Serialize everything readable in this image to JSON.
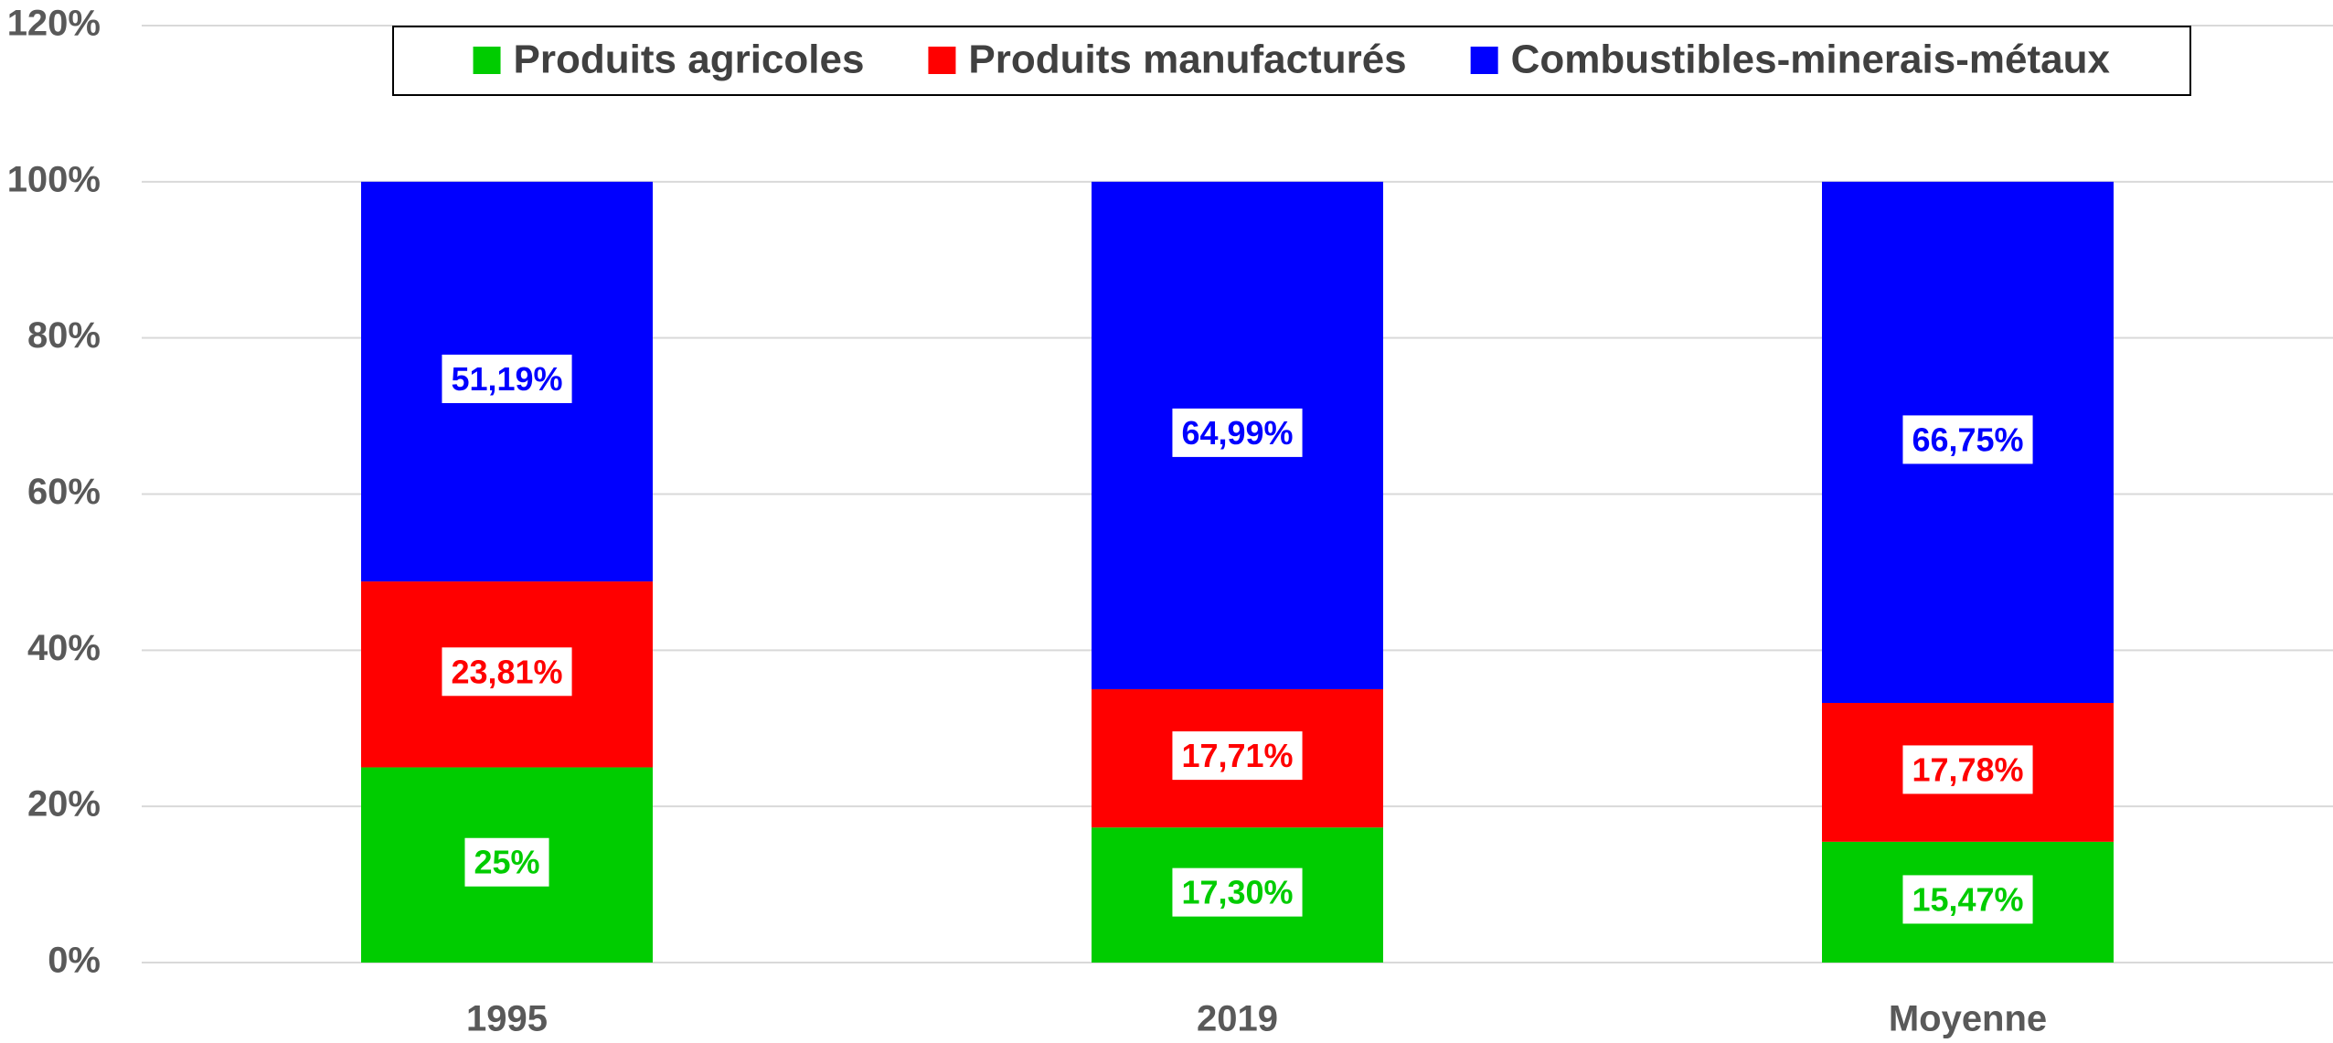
{
  "chart_data": {
    "type": "stacked-bar",
    "categories": [
      "1995",
      "2019",
      "Moyenne"
    ],
    "series": [
      {
        "name": "Produits agricoles",
        "color": "#00cc00",
        "values": [
          25,
          17.3,
          15.47
        ],
        "value_labels": [
          "25%",
          "17,30%",
          "15,47%"
        ]
      },
      {
        "name": "Produits manufacturés",
        "color": "#ff0000",
        "values": [
          23.81,
          17.71,
          17.78
        ],
        "value_labels": [
          "23,81%",
          "17,71%",
          "17,78%"
        ]
      },
      {
        "name": "Combustibles-minerais-métaux",
        "color": "#0000ff",
        "values": [
          51.19,
          64.99,
          66.75
        ],
        "value_labels": [
          "51,19%",
          "64,99%",
          "66,75%"
        ]
      }
    ],
    "ylim": [
      0,
      120
    ],
    "yticks": [
      {
        "value": 0,
        "label": "0%"
      },
      {
        "value": 20,
        "label": "20%"
      },
      {
        "value": 40,
        "label": "40%"
      },
      {
        "value": 60,
        "label": "60%"
      },
      {
        "value": 80,
        "label": "80%"
      },
      {
        "value": 100,
        "label": "100%"
      },
      {
        "value": 120,
        "label": "120%"
      }
    ],
    "grid": true,
    "legend": "top"
  }
}
